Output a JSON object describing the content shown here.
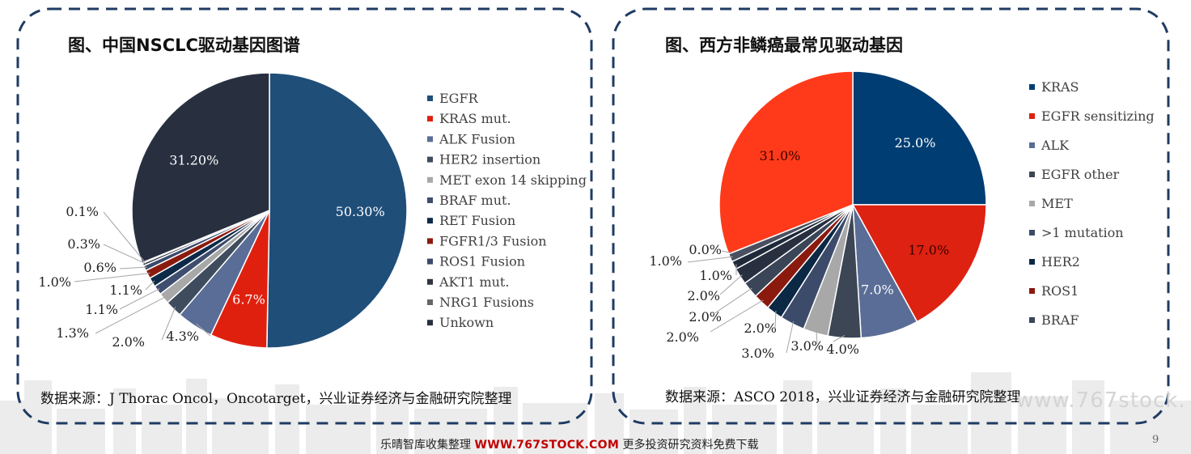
{
  "left": {
    "title": "图、中国NSCLC驱动基因图谱",
    "source": "数据来源：J Thorac Oncol，Oncotarget，兴业证券经济与金融研究院整理",
    "chart_data": {
      "type": "pie",
      "title": "图、中国NSCLC驱动基因图谱",
      "legend_position": "right",
      "slices": [
        {
          "name": "EGFR",
          "value": 50.3,
          "label": "50.30%",
          "color": "#1f4e79"
        },
        {
          "name": "KRAS mut.",
          "value": 6.7,
          "label": "6.7%",
          "color": "#e0200f"
        },
        {
          "name": "ALK Fusion",
          "value": 4.3,
          "label": "4.3%",
          "color": "#5a6d96"
        },
        {
          "name": "HER2 insertion",
          "value": 2.0,
          "label": "2.0%",
          "color": "#3e4c5e"
        },
        {
          "name": "MET exon 14 skipping",
          "value": 1.3,
          "label": "1.3%",
          "color": "#a8a8a8"
        },
        {
          "name": "BRAF mut.",
          "value": 1.1,
          "label": "1.1%",
          "color": "#3f4e6e"
        },
        {
          "name": "RET Fusion",
          "value": 1.1,
          "label": "1.1%",
          "color": "#0d2a48"
        },
        {
          "name": "FGFR1/3 Fusion",
          "value": 1.0,
          "label": "1.0%",
          "color": "#8b1a0e"
        },
        {
          "name": "ROS1 Fusion",
          "value": 0.6,
          "label": "0.6%",
          "color": "#3b4a6b"
        },
        {
          "name": "AKT1 mut.",
          "value": 0.3,
          "label": "0.3%",
          "color": "#2e3440"
        },
        {
          "name": "NRG1 Fusions",
          "value": 0.1,
          "label": "0.1%",
          "color": "#666666"
        },
        {
          "name": "Unkown",
          "value": 31.2,
          "label": "31.20%",
          "color": "#283040"
        }
      ]
    }
  },
  "right": {
    "title": "图、西方非鳞癌最常见驱动基因",
    "source": "数据来源：ASCO 2018，兴业证券经济与金融研究院整理",
    "chart_data": {
      "type": "pie",
      "title": "图、西方非鳞癌最常见驱动基因",
      "legend_position": "right",
      "legend": [
        "KRAS",
        "EGFR sensitizing",
        "ALK",
        "EGFR other",
        "MET",
        ">1 mutation",
        "HER2",
        "ROS1",
        "BRAF"
      ],
      "slices": [
        {
          "name": "KRAS",
          "value": 25.0,
          "label": "25.0%",
          "color": "#003d73"
        },
        {
          "name": "EGFR sensitizing",
          "value": 17.0,
          "label": "17.0%",
          "color": "#dd2211"
        },
        {
          "name": "ALK",
          "value": 7.0,
          "label": "7.0%",
          "color": "#5a6d96"
        },
        {
          "name": "EGFR other",
          "value": 4.0,
          "label": "4.0%",
          "color": "#3c4655"
        },
        {
          "name": "MET",
          "value": 3.0,
          "label": "3.0%",
          "color": "#a8a8a8"
        },
        {
          "name": ">1 mutation",
          "value": 3.0,
          "label": "3.0%",
          "color": "#3d4b6a"
        },
        {
          "name": "HER2",
          "value": 2.0,
          "label": "2.0%",
          "color": "#0b2845"
        },
        {
          "name": "ROS1",
          "value": 2.0,
          "label": "2.0%",
          "color": "#8b1a0e"
        },
        {
          "name": "BRAF",
          "value": 2.0,
          "label": "2.0%",
          "color": "#3a4658"
        },
        {
          "name": "",
          "value": 2.0,
          "label": "2.0%",
          "color": "#283040"
        },
        {
          "name": "",
          "value": 1.0,
          "label": "1.0%",
          "color": "#1e2a3a"
        },
        {
          "name": "",
          "value": 1.0,
          "label": "1.0%",
          "color": "#4a5060"
        },
        {
          "name": "",
          "value": 0.0,
          "label": "0.0%",
          "color": "#333333"
        },
        {
          "name": "",
          "value": 31.0,
          "label": "31.0%",
          "color": "#ff3a1a"
        }
      ]
    }
  },
  "footer": {
    "left": "乐晴智库收集整理",
    "site": "WWW.767STOCK.COM",
    "right": "更多投资研究资料免费下载",
    "watermark": "www.767stock.",
    "page": "9"
  },
  "colors": {
    "frame": "#1f3b63",
    "skyline": "#e9e9e9"
  }
}
